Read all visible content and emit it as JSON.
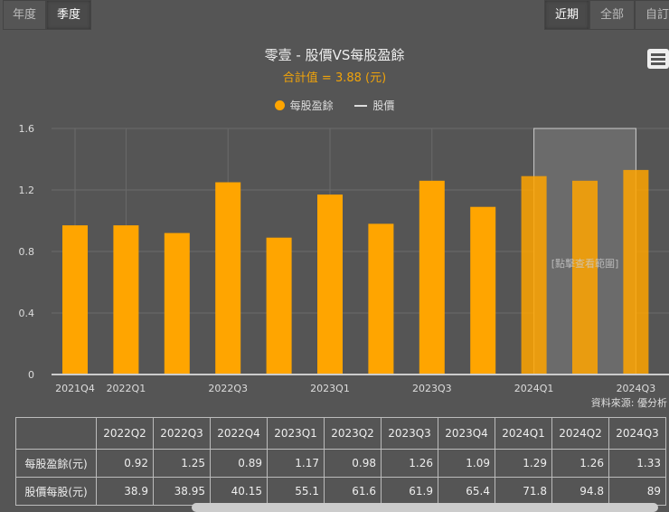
{
  "period_tabs": [
    "年度",
    "季度"
  ],
  "active_period": "季度",
  "range_tabs": [
    "近期",
    "全部",
    "自訂"
  ],
  "active_range": "近期",
  "chart_data": {
    "type": "bar",
    "title": "零壹 - 股價VS每股盈餘",
    "subtitle": "合計值 = 3.88 (元)",
    "legend": [
      "每股盈餘",
      "股價"
    ],
    "legend_position": "top",
    "categories": [
      "2021Q4",
      "2022Q1",
      "2022Q2",
      "2022Q3",
      "2022Q4",
      "2023Q1",
      "2023Q2",
      "2023Q3",
      "2023Q4",
      "2024Q1",
      "2024Q2",
      "2024Q3"
    ],
    "tick_labels": [
      "2021Q4",
      "2022Q1",
      "2022Q3",
      "2023Q1",
      "2023Q3",
      "2024Q1",
      "2024Q3"
    ],
    "series": [
      {
        "name": "每股盈餘",
        "values": [
          0.97,
          0.97,
          0.92,
          1.25,
          0.89,
          1.17,
          0.98,
          1.26,
          1.09,
          1.29,
          1.26,
          1.33
        ],
        "color": "#ffa500"
      }
    ],
    "ylim": [
      0,
      1.6
    ],
    "yticks": [
      "0",
      "0.4",
      "0.8",
      "1.2",
      "1.6"
    ],
    "grid": true,
    "highlight_band": {
      "from": "2024Q1",
      "to": "2024Q3",
      "label": "[點擊查看範圍]"
    },
    "source": "資料來源: 優分析"
  },
  "table": {
    "headers": [
      "",
      "2022Q2",
      "2022Q3",
      "2022Q4",
      "2023Q1",
      "2023Q2",
      "2023Q3",
      "2023Q4",
      "2024Q1",
      "2024Q2",
      "2024Q3"
    ],
    "rows": [
      {
        "label": "每股盈餘(元)",
        "values": [
          "0.92",
          "1.25",
          "0.89",
          "1.17",
          "0.98",
          "1.26",
          "1.09",
          "1.29",
          "1.26",
          "1.33"
        ]
      },
      {
        "label": "股價每股(元)",
        "values": [
          "38.9",
          "38.95",
          "40.15",
          "55.1",
          "61.6",
          "61.9",
          "65.4",
          "71.8",
          "94.8",
          "89"
        ]
      }
    ]
  }
}
